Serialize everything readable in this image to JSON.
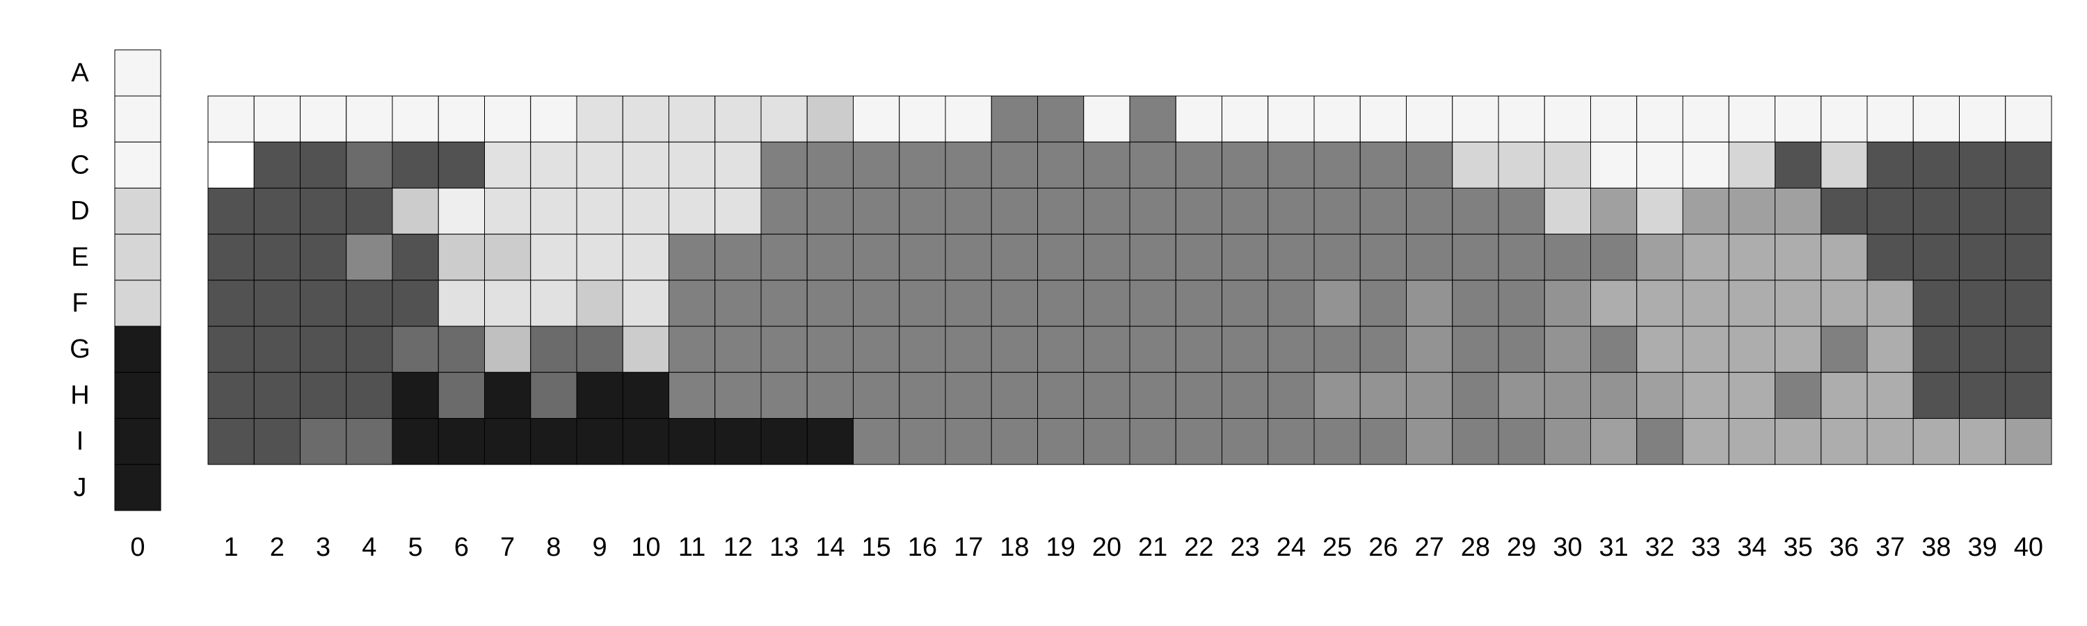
{
  "chart_data": {
    "type": "heatmap",
    "title": "",
    "xlabel": "",
    "ylabel": "",
    "legend": "none",
    "grid": true,
    "row_labels": [
      "A",
      "B",
      "C",
      "D",
      "E",
      "F",
      "G",
      "H",
      "I",
      "J"
    ],
    "col_labels": [
      "0",
      "1",
      "2",
      "3",
      "4",
      "5",
      "6",
      "7",
      "8",
      "9",
      "10",
      "11",
      "12",
      "13",
      "14",
      "15",
      "16",
      "17",
      "18",
      "19",
      "20",
      "21",
      "22",
      "23",
      "24",
      "25",
      "26",
      "27",
      "28",
      "29",
      "30",
      "31",
      "32",
      "33",
      "34",
      "35",
      "36",
      "37",
      "38",
      "39",
      "40"
    ],
    "key_column": {
      "label": "0",
      "colors": [
        "#f5f5f5",
        "#f5f5f5",
        "#f5f5f5",
        "#d6d6d6",
        "#d6d6d6",
        "#d6d6d6",
        "#1a1a1a",
        "#1a1a1a",
        "#1a1a1a",
        "#1a1a1a"
      ]
    },
    "matrix_rows": [
      "B",
      "C",
      "D",
      "E",
      "F",
      "G",
      "H",
      "I"
    ],
    "cells": [
      [
        "#f5f5f5",
        "#f5f5f5",
        "#f5f5f5",
        "#f5f5f5",
        "#f5f5f5",
        "#f5f5f5",
        "#f5f5f5",
        "#f5f5f5",
        "#e1e1e1",
        "#e1e1e1",
        "#e1e1e1",
        "#e1e1e1",
        "#e1e1e1",
        "#cccccc",
        "#f5f5f5",
        "#f5f5f5",
        "#f5f5f5",
        "#808080",
        "#808080",
        "#f5f5f5",
        "#808080",
        "#f5f5f5",
        "#f5f5f5",
        "#f5f5f5",
        "#f5f5f5",
        "#f5f5f5",
        "#f5f5f5",
        "#f5f5f5",
        "#f5f5f5",
        "#f5f5f5",
        "#f5f5f5",
        "#f5f5f5",
        "#f5f5f5",
        "#f5f5f5",
        "#f5f5f5",
        "#f5f5f5",
        "#f5f5f5",
        "#f5f5f5",
        "#f5f5f5",
        "#f5f5f5"
      ],
      [
        "#ffffff",
        "#525252",
        "#525252",
        "#6b6b6b",
        "#525252",
        "#525252",
        "#e1e1e1",
        "#e1e1e1",
        "#e1e1e1",
        "#e1e1e1",
        "#e1e1e1",
        "#e1e1e1",
        "#808080",
        "#808080",
        "#808080",
        "#808080",
        "#808080",
        "#808080",
        "#808080",
        "#808080",
        "#808080",
        "#808080",
        "#808080",
        "#808080",
        "#808080",
        "#808080",
        "#808080",
        "#d6d6d6",
        "#d6d6d6",
        "#d6d6d6",
        "#f5f5f5",
        "#f5f5f5",
        "#f5f5f5",
        "#d6d6d6",
        "#525252",
        "#d6d6d6",
        "#525252",
        "#525252",
        "#525252",
        "#525252"
      ],
      [
        "#525252",
        "#525252",
        "#525252",
        "#525252",
        "#cccccc",
        "#eeeeee",
        "#e1e1e1",
        "#e1e1e1",
        "#e1e1e1",
        "#e1e1e1",
        "#e1e1e1",
        "#e1e1e1",
        "#808080",
        "#808080",
        "#808080",
        "#808080",
        "#808080",
        "#808080",
        "#808080",
        "#808080",
        "#808080",
        "#808080",
        "#808080",
        "#808080",
        "#808080",
        "#808080",
        "#808080",
        "#808080",
        "#808080",
        "#d6d6d6",
        "#a0a0a0",
        "#d6d6d6",
        "#a0a0a0",
        "#a0a0a0",
        "#a0a0a0",
        "#525252",
        "#525252",
        "#525252",
        "#525252",
        "#525252"
      ],
      [
        "#525252",
        "#525252",
        "#525252",
        "#878787",
        "#525252",
        "#cccccc",
        "#cccccc",
        "#e1e1e1",
        "#e1e1e1",
        "#e1e1e1",
        "#808080",
        "#808080",
        "#808080",
        "#808080",
        "#808080",
        "#808080",
        "#808080",
        "#808080",
        "#808080",
        "#808080",
        "#808080",
        "#808080",
        "#808080",
        "#808080",
        "#808080",
        "#808080",
        "#808080",
        "#808080",
        "#808080",
        "#808080",
        "#808080",
        "#a0a0a0",
        "#adadad",
        "#adadad",
        "#adadad",
        "#adadad",
        "#525252",
        "#525252",
        "#525252",
        "#525252"
      ],
      [
        "#525252",
        "#525252",
        "#525252",
        "#525252",
        "#525252",
        "#e1e1e1",
        "#e1e1e1",
        "#e1e1e1",
        "#cccccc",
        "#e1e1e1",
        "#808080",
        "#808080",
        "#808080",
        "#808080",
        "#808080",
        "#808080",
        "#808080",
        "#808080",
        "#808080",
        "#808080",
        "#808080",
        "#808080",
        "#808080",
        "#808080",
        "#939393",
        "#808080",
        "#939393",
        "#808080",
        "#808080",
        "#939393",
        "#adadad",
        "#adadad",
        "#adadad",
        "#adadad",
        "#adadad",
        "#adadad",
        "#adadad",
        "#525252",
        "#525252",
        "#525252"
      ],
      [
        "#525252",
        "#525252",
        "#525252",
        "#525252",
        "#6b6b6b",
        "#6b6b6b",
        "#c0c0c0",
        "#6b6b6b",
        "#6b6b6b",
        "#cccccc",
        "#808080",
        "#808080",
        "#808080",
        "#808080",
        "#808080",
        "#808080",
        "#808080",
        "#808080",
        "#808080",
        "#808080",
        "#808080",
        "#808080",
        "#808080",
        "#808080",
        "#808080",
        "#808080",
        "#939393",
        "#808080",
        "#808080",
        "#939393",
        "#808080",
        "#adadad",
        "#adadad",
        "#adadad",
        "#adadad",
        "#808080",
        "#adadad",
        "#525252",
        "#525252",
        "#525252"
      ],
      [
        "#525252",
        "#525252",
        "#525252",
        "#525252",
        "#1a1a1a",
        "#6b6b6b",
        "#1a1a1a",
        "#6b6b6b",
        "#1a1a1a",
        "#1a1a1a",
        "#808080",
        "#808080",
        "#808080",
        "#808080",
        "#808080",
        "#808080",
        "#808080",
        "#808080",
        "#808080",
        "#808080",
        "#808080",
        "#808080",
        "#808080",
        "#808080",
        "#939393",
        "#939393",
        "#939393",
        "#808080",
        "#939393",
        "#939393",
        "#939393",
        "#a0a0a0",
        "#adadad",
        "#adadad",
        "#808080",
        "#adadad",
        "#adadad",
        "#525252",
        "#525252",
        "#525252"
      ],
      [
        "#525252",
        "#525252",
        "#6b6b6b",
        "#6b6b6b",
        "#1a1a1a",
        "#1a1a1a",
        "#1a1a1a",
        "#1a1a1a",
        "#1a1a1a",
        "#1a1a1a",
        "#1a1a1a",
        "#1a1a1a",
        "#1a1a1a",
        "#1a1a1a",
        "#808080",
        "#808080",
        "#808080",
        "#808080",
        "#808080",
        "#808080",
        "#808080",
        "#808080",
        "#808080",
        "#808080",
        "#808080",
        "#808080",
        "#939393",
        "#808080",
        "#808080",
        "#939393",
        "#a0a0a0",
        "#808080",
        "#adadad",
        "#adadad",
        "#adadad",
        "#adadad",
        "#adadad",
        "#adadad",
        "#adadad",
        "#a0a0a0"
      ]
    ]
  }
}
